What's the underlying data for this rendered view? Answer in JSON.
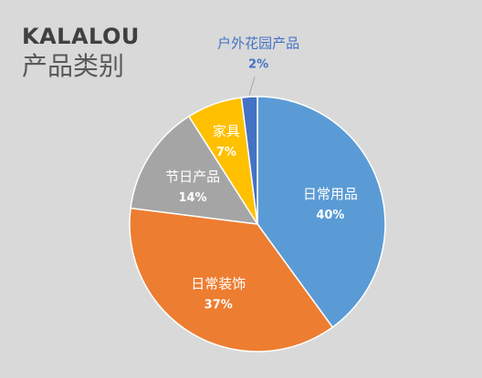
{
  "title": "KALALOU",
  "subtitle": "产品类别",
  "chart_data": {
    "type": "pie",
    "title": "KALALOU",
    "subtitle": "产品类别",
    "slices": [
      {
        "label": "日常用品",
        "value": 40,
        "value_text": "40%",
        "color": "#5b9bd5",
        "label_color": "#ffffff"
      },
      {
        "label": "日常装饰",
        "value": 37,
        "value_text": "37%",
        "color": "#ed7d31",
        "label_color": "#ffffff"
      },
      {
        "label": "节日产品",
        "value": 14,
        "value_text": "14%",
        "color": "#a5a5a5",
        "label_color": "#ffffff"
      },
      {
        "label": "家具",
        "value": 7,
        "value_text": "7%",
        "color": "#ffc000",
        "label_color": "#ffffff"
      },
      {
        "label": "户外花园产品",
        "value": 2,
        "value_text": "2%",
        "color": "#4472c4",
        "label_color": "#4472c4"
      }
    ],
    "start": "12 o'clock",
    "direction": "clockwise",
    "legend": "none"
  }
}
